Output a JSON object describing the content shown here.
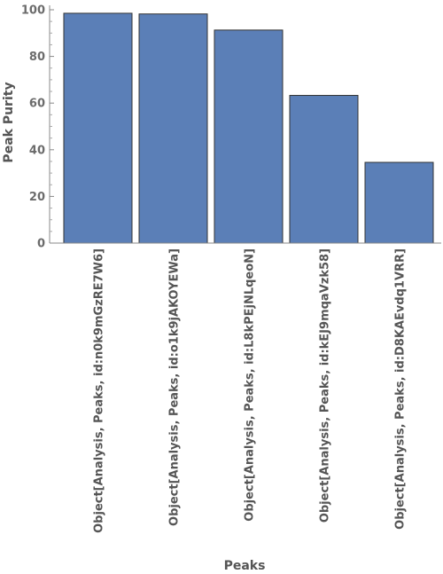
{
  "chart_data": {
    "type": "bar",
    "categories": [
      "Object[Analysis, Peaks, id:n0k9mGzRE7W6]",
      "Object[Analysis, Peaks, id:o1k9jAKOYEWa]",
      "Object[Analysis, Peaks, id:L8kPEjNLqeoN]",
      "Object[Analysis, Peaks, id:kEJ9mqaVzk58]",
      "Object[Analysis, Peaks, id:D8KAEvdq1VRR]"
    ],
    "values": [
      98.5,
      98.2,
      91.3,
      63.3,
      34.6
    ],
    "xlabel": "Peaks",
    "ylabel": "Peak Purity",
    "ylim": [
      0,
      100
    ],
    "yticks": [
      0,
      20,
      40,
      60,
      80,
      100
    ],
    "bar_color": "#5b7fb7",
    "bar_stroke": "#333333",
    "grid": false,
    "legend": "none"
  }
}
